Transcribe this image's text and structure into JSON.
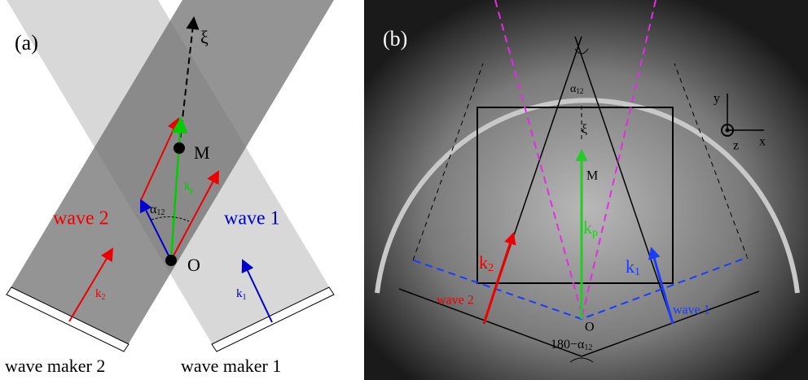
{
  "panel_a": {
    "label": "(a)",
    "xi": "ξ",
    "point_m": "M",
    "point_o": "O",
    "wave_2": "wave 2",
    "wave_1": "wave 1",
    "kp": {
      "main": "k",
      "sub": "p"
    },
    "alpha": {
      "main": "α",
      "sub": "12"
    },
    "k2": {
      "main": "k",
      "sub": "2"
    },
    "k1": {
      "main": "k",
      "sub": "1"
    },
    "maker_2": "wave maker 2",
    "maker_1": "wave maker 1"
  },
  "panel_b": {
    "label": "(b)",
    "alpha": {
      "main": "α",
      "sub": "12"
    },
    "xi": "ξ",
    "point_m": "M",
    "kp": {
      "main": "k",
      "sub": "p"
    },
    "k2": {
      "main": "k",
      "sub": "2"
    },
    "wave_2": "wave 2",
    "k1": {
      "main": "k",
      "sub": "1"
    },
    "wave_1": "wave 1",
    "point_o": "O",
    "angle": {
      "main": "180−α",
      "sub": "12"
    },
    "axis_y": "y",
    "axis_x": "x",
    "axis_z": "z"
  }
}
